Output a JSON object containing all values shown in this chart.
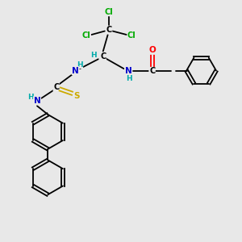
{
  "bg_color": "#e8e8e8",
  "bond_color": "#000000",
  "atom_colors": {
    "C": "#000000",
    "H": "#00aaaa",
    "N": "#0000cc",
    "O": "#ff0000",
    "S": "#ccaa00",
    "Cl": "#00aa00"
  },
  "figsize": [
    3.0,
    3.0
  ],
  "dpi": 100,
  "xlim": [
    0,
    10
  ],
  "ylim": [
    0,
    10
  ]
}
